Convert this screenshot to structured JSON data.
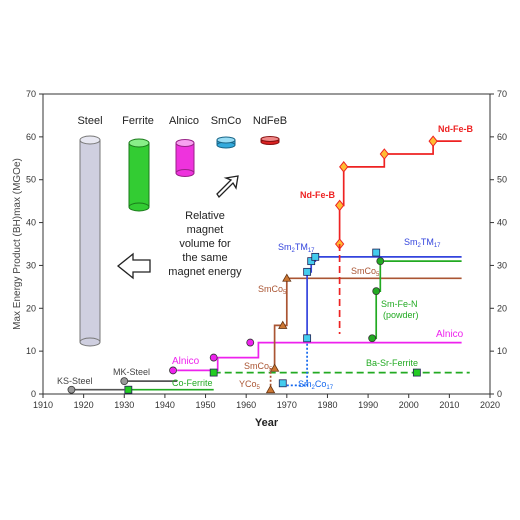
{
  "chart_data": {
    "type": "line",
    "xlabel": "Year",
    "ylabel": "Max Energy Product (BH)max (MGOe)",
    "xlim": [
      1910,
      2020
    ],
    "ylim": [
      0,
      70
    ],
    "x_ticks": [
      "1910",
      "1920",
      "1930",
      "1940",
      "1950",
      "1960",
      "1970",
      "1980",
      "1990",
      "2000",
      "2010",
      "2020"
    ],
    "y_ticks": [
      "0",
      "10",
      "20",
      "30",
      "40",
      "50",
      "60",
      "70"
    ],
    "series": [
      {
        "name": "KS-Steel",
        "color": "#555555",
        "points": [
          [
            1917,
            1
          ],
          [
            1930,
            1
          ]
        ],
        "marker": "circle",
        "open": true
      },
      {
        "name": "MK-Steel",
        "color": "#555555",
        "points": [
          [
            1930,
            3
          ],
          [
            1943,
            3
          ]
        ],
        "marker": "circle",
        "open": true
      },
      {
        "name": "Co-Ferrite",
        "color": "#22aa22",
        "points": [
          [
            1931,
            1
          ],
          [
            1952,
            1
          ]
        ],
        "marker": "square"
      },
      {
        "name": "Alnico",
        "color": "#ee22ee",
        "points": [
          [
            1943,
            5.5
          ],
          [
            1953,
            5.5
          ],
          [
            1953,
            8.5
          ],
          [
            1963,
            8.5
          ],
          [
            1963,
            12
          ],
          [
            2013,
            12
          ]
        ],
        "markers": [
          [
            1942,
            5.5
          ],
          [
            1952,
            8.5
          ],
          [
            1961,
            12
          ]
        ],
        "marker": "circle"
      },
      {
        "name": "Ba-Sr-Ferrite",
        "color": "#22aa22",
        "dashed": true,
        "points": [
          [
            1952,
            5
          ],
          [
            2015,
            5
          ]
        ],
        "markers": [
          [
            1952,
            5
          ],
          [
            2002,
            5
          ]
        ],
        "marker": "square"
      },
      {
        "name": "SmCo5",
        "color": "#aa5533",
        "points": [
          [
            1967,
            6
          ],
          [
            1967,
            16
          ],
          [
            1970,
            16
          ],
          [
            1970,
            27
          ],
          [
            2013,
            27
          ]
        ],
        "markers": [
          [
            1967,
            6
          ],
          [
            1969,
            16
          ],
          [
            1970,
            27
          ]
        ],
        "marker": "triangle"
      },
      {
        "name": "YCo5",
        "color": "#aa5533",
        "dotted": true,
        "points": [
          [
            1966,
            1
          ],
          [
            1966,
            2
          ],
          [
            1966,
            6
          ]
        ],
        "markers": [
          [
            1966,
            1
          ]
        ],
        "marker": "triangle"
      },
      {
        "name": "Sm2Co17",
        "color": "#1166ee",
        "dotted": true,
        "points": [
          [
            1969,
            2
          ],
          [
            1975,
            2
          ],
          [
            1975,
            13
          ]
        ],
        "markers": [
          [
            1969,
            2.5
          ]
        ],
        "marker": "square"
      },
      {
        "name": "Sm2TM17",
        "color": "#3344dd",
        "points": [
          [
            1975,
            13
          ],
          [
            1975,
            28.5
          ],
          [
            1976,
            28.5
          ],
          [
            1976,
            31
          ],
          [
            1977,
            31
          ],
          [
            1977,
            32
          ],
          [
            2013,
            32
          ]
        ],
        "markers": [
          [
            1975,
            13
          ],
          [
            1975,
            28.5
          ],
          [
            1976,
            31
          ],
          [
            1977,
            32
          ],
          [
            1992,
            33
          ]
        ],
        "marker": "square"
      },
      {
        "name": "Sm-Fe-N",
        "color": "#22aa22",
        "points": [
          [
            1991,
            13
          ],
          [
            1992,
            13
          ],
          [
            1992,
            24
          ],
          [
            1993,
            24
          ],
          [
            1993,
            31
          ],
          [
            2013,
            31
          ]
        ],
        "markers": [
          [
            1991,
            13
          ],
          [
            1992,
            24
          ],
          [
            1993,
            31
          ]
        ],
        "marker": "circle"
      },
      {
        "name": "Nd-Fe-B",
        "color": "#ee2222",
        "points": [
          [
            1983,
            35
          ],
          [
            1983,
            44
          ],
          [
            1984,
            44
          ],
          [
            1984,
            53
          ],
          [
            1994,
            53
          ],
          [
            1994,
            56
          ],
          [
            2006,
            56
          ],
          [
            2006,
            59
          ],
          [
            2013,
            59
          ]
        ],
        "markers": [
          [
            1983,
            35
          ],
          [
            1983,
            44
          ],
          [
            1984,
            53
          ],
          [
            1994,
            56
          ],
          [
            2006,
            59
          ]
        ],
        "marker": "diamond"
      },
      {
        "name": "Nd-Fe-B dashed",
        "color": "#ee2222",
        "dashed": true,
        "points": [
          [
            1983,
            35
          ],
          [
            1983,
            14
          ]
        ]
      }
    ]
  },
  "labels": {
    "ks_steel": "KS-Steel",
    "mk_steel": "MK-Steel",
    "co_ferrite": "Co-Ferrite",
    "alnico_left": "Alnico",
    "alnico_right": "Alnico",
    "ba_sr_ferrite": "Ba-Sr-Ferrite",
    "smco5_low": "SmCo",
    "smco5_low_sub": "5",
    "smco5_mid": "SmCo",
    "smco5_mid_sub": "5",
    "smco5_right": "SmCo",
    "smco5_right_sub": "5",
    "yco5": "YCo",
    "yco5_sub": "5",
    "sm2co17": "Sm",
    "sm2co17_sub1": "2",
    "sm2co17_mid": "Co",
    "sm2co17_sub2": "17",
    "sm2tm17_left": "Sm",
    "sm2tm17_left_sub1": "2",
    "sm2tm17_left_mid": "TM",
    "sm2tm17_left_sub2": "17",
    "sm2tm17_right": "Sm",
    "sm2tm17_right_sub1": "2",
    "sm2tm17_right_mid": "TM",
    "sm2tm17_right_sub2": "17",
    "smfen_1": "Sm-Fe-N",
    "smfen_2": "(powder)",
    "ndfeb_mid": "Nd-Fe-B",
    "ndfeb_top": "Nd-Fe-B"
  },
  "legend": {
    "steel": "Steel",
    "ferrite": "Ferrite",
    "alnico": "Alnico",
    "smco": "SmCo",
    "ndfeb": "NdFeB",
    "note_1": "Relative",
    "note_2": "magnet",
    "note_3": "volume for",
    "note_4": "the same",
    "note_5": "magnet energy"
  }
}
